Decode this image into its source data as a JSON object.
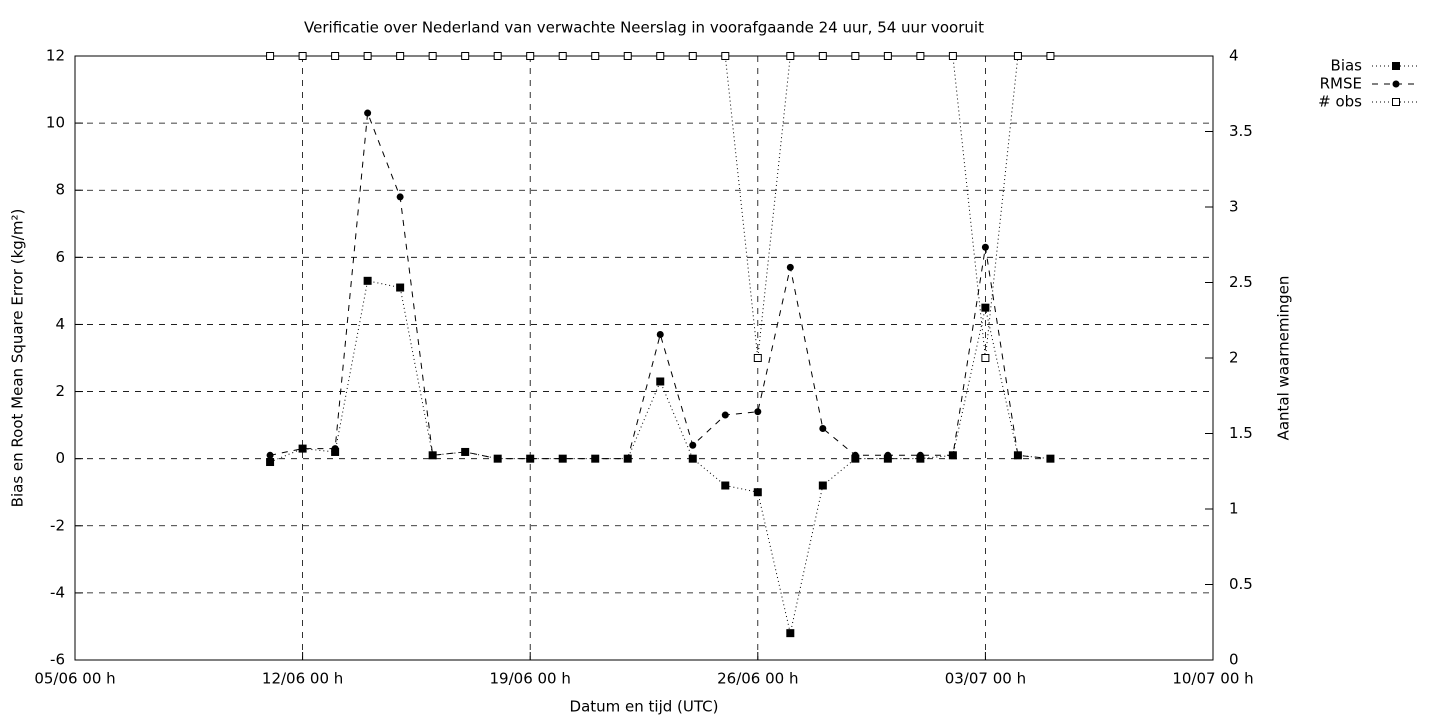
{
  "chart_data": {
    "type": "line",
    "title": "Verificatie over Nederland van verwachte Neerslag in voorafgaande 24 uur, 54 uur vooruit",
    "x_label": "Datum en tijd (UTC)",
    "y_label": "Bias en Root Mean Square Error (kg/m²)",
    "y2_label": "Aantal waarnemingen",
    "x": [
      "11/06 00 h",
      "12/06 00 h",
      "13/06 00 h",
      "14/06 00 h",
      "15/06 00 h",
      "16/06 00 h",
      "17/06 00 h",
      "18/06 00 h",
      "19/06 00 h",
      "20/06 00 h",
      "21/06 00 h",
      "22/06 00 h",
      "23/06 00 h",
      "24/06 00 h",
      "25/06 00 h",
      "26/06 00 h",
      "27/06 00 h",
      "28/06 00 h",
      "29/06 00 h",
      "30/06 00 h",
      "01/07 00 h",
      "02/07 00 h",
      "03/07 00 h",
      "04/07 00 h",
      "05/07 00 h"
    ],
    "xlim": [
      "05/06 00 h",
      "10/07 00 h"
    ],
    "xticks": [
      "05/06 00 h",
      "12/06 00 h",
      "19/06 00 h",
      "26/06 00 h",
      "03/07 00 h",
      "10/07 00 h"
    ],
    "ylim": [
      -6,
      12
    ],
    "yticks": [
      -6,
      -4,
      -2,
      0,
      2,
      4,
      6,
      8,
      10,
      12
    ],
    "y2lim": [
      0,
      4
    ],
    "y2ticks": [
      0,
      0.5,
      1,
      1.5,
      2,
      2.5,
      3,
      3.5,
      4
    ],
    "grid": true,
    "legend": "outside-top-right",
    "series": [
      {
        "name": "Bias",
        "color": "#000000",
        "line_style": "dotted",
        "marker": "filled-square",
        "values": [
          -0.1,
          0.3,
          0.2,
          5.3,
          5.1,
          0.1,
          0.2,
          0,
          0,
          0,
          0,
          0,
          2.3,
          0,
          -0.8,
          -1.0,
          -5.2,
          -0.8,
          0,
          0,
          0,
          0.1,
          4.5,
          0.1,
          0
        ]
      },
      {
        "name": "RMSE",
        "color": "#000000",
        "line_style": "dashed",
        "marker": "filled-circle",
        "values": [
          0.1,
          0.3,
          0.3,
          10.3,
          7.8,
          0.1,
          0.2,
          0,
          0,
          0,
          0,
          0,
          3.7,
          0.4,
          1.3,
          1.4,
          5.7,
          0.9,
          0.1,
          0.1,
          0.1,
          0.1,
          6.3,
          0.1,
          0
        ]
      },
      {
        "name": "# obs",
        "color": "#000000",
        "line_style": "dotted",
        "marker": "open-square",
        "axis": "y2",
        "values": [
          4,
          4,
          4,
          4,
          4,
          4,
          4,
          4,
          4,
          4,
          4,
          4,
          4,
          4,
          4,
          2,
          4,
          4,
          4,
          4,
          4,
          4,
          2,
          4,
          4
        ]
      }
    ]
  }
}
